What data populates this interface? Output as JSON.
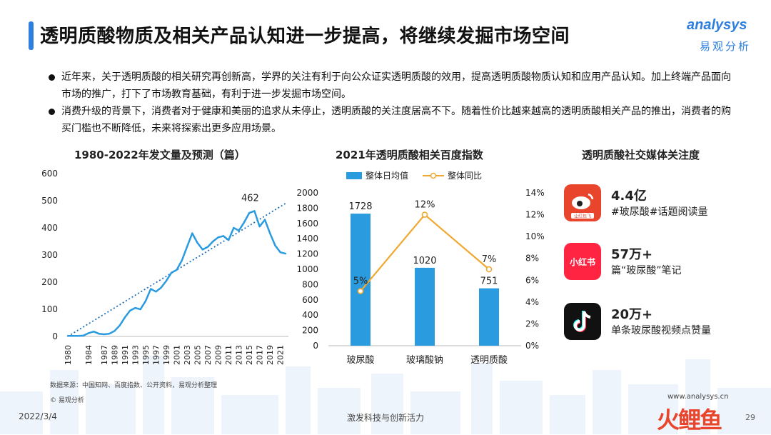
{
  "header": {
    "title": "透明质酸物质及相关产品认知进一步提高，将继续发掘市场空间",
    "logo_en": "analysys",
    "logo_cn": "易观分析"
  },
  "bullets": [
    "近年来，关于透明质酸的相关研究再创新高，学界的关注有利于向公众证实透明质酸的效用，提高透明质酸物质认知和应用产品认知。加上终端产品面向市场的推广，打下了市场教育基础，有利于进一步发掘市场空间。",
    "消费升级的背景下，消费者对于健康和美丽的追求从未停止，透明质酸的关注度居高不下。随着性价比越来越高的透明质酸相关产品的推出，消费者的购买门槛也不断降低，未来将探索出更多应用场景。"
  ],
  "chart_data": [
    {
      "type": "line",
      "title": "1980-2022年发文量及预测（篇）",
      "x": [
        1980,
        1981,
        1982,
        1983,
        1984,
        1985,
        1986,
        1987,
        1988,
        1989,
        1990,
        1991,
        1992,
        1993,
        1994,
        1995,
        1996,
        1997,
        1998,
        1999,
        2000,
        2001,
        2002,
        2003,
        2004,
        2005,
        2006,
        2007,
        2008,
        2009,
        2010,
        2011,
        2012,
        2013,
        2014,
        2015,
        2016,
        2017,
        2018,
        2019,
        2020,
        2021,
        2022
      ],
      "x_ticks": [
        "1980",
        "1984",
        "1987",
        "1989",
        "1991",
        "1993",
        "1995",
        "1997",
        "1999",
        "2001",
        "2003",
        "2005",
        "2007",
        "2009",
        "2011",
        "2013",
        "2015",
        "2017",
        "2019",
        "2021"
      ],
      "values": [
        2,
        2,
        2,
        3,
        12,
        18,
        10,
        8,
        10,
        20,
        40,
        70,
        95,
        105,
        100,
        130,
        175,
        165,
        180,
        205,
        235,
        245,
        280,
        330,
        380,
        345,
        320,
        330,
        350,
        365,
        370,
        355,
        400,
        390,
        420,
        455,
        462,
        405,
        430,
        380,
        335,
        310,
        305
      ],
      "trendline": {
        "start_value": 0,
        "end_value": 490
      },
      "annotation": {
        "text": "462",
        "x": 2016,
        "y": 462
      },
      "ylim": [
        0,
        600
      ],
      "y_ticks": [
        0,
        100,
        200,
        300,
        400,
        500,
        600
      ],
      "color": "#2b9be0",
      "trend_color": "#1f6fb8"
    },
    {
      "type": "bar",
      "title": "2021年透明质酸相关百度指数",
      "categories": [
        "玻尿酸",
        "玻璃酸钠",
        "透明质酸"
      ],
      "series": [
        {
          "name": "整体日均值",
          "values": [
            1728,
            1020,
            751
          ],
          "axis": "left",
          "color": "#2b9be0"
        },
        {
          "name": "整体同比",
          "values": [
            5,
            12,
            7
          ],
          "axis": "right",
          "type": "line",
          "color": "#f0a830"
        }
      ],
      "data_labels_bar": [
        "1728",
        "1020",
        "751"
      ],
      "data_labels_line": [
        "5%",
        "12%",
        "7%"
      ],
      "ylim_left": [
        0,
        2000
      ],
      "y_ticks_left": [
        "0",
        "200",
        "400",
        "600",
        "800",
        "1000",
        "1200",
        "1400",
        "1600",
        "1800",
        "2000"
      ],
      "ylim_right": [
        0,
        14
      ],
      "y_ticks_right": [
        "0%",
        "2%",
        "4%",
        "6%",
        "8%",
        "10%",
        "12%",
        "14%"
      ]
    }
  ],
  "social": {
    "title": "透明质酸社交媒体关注度",
    "items": [
      {
        "icon": "weibo-icon",
        "value": "4.4亿",
        "desc": "#玻尿酸#话题阅读量",
        "color": "#e8452c",
        "badge": "让红包飞"
      },
      {
        "icon": "xiaohongshu-icon",
        "value": "57万+",
        "desc": "篇“玻尿酸”笔记",
        "color": "#ff2442",
        "badge": "小红书"
      },
      {
        "icon": "tiktok-icon",
        "value": "20万+",
        "desc": "单条玻尿酸视频点赞量",
        "color": "#111111"
      }
    ]
  },
  "footer": {
    "source": "数据来源：中国知网、百度指数、公开资料，易观分析整理",
    "copyright": "© 易观分析",
    "website": "www.analysys.cn",
    "date": "2022/3/4",
    "slogan": "激发科技与创新活力",
    "page": "29",
    "brand2": "火鲤鱼"
  }
}
